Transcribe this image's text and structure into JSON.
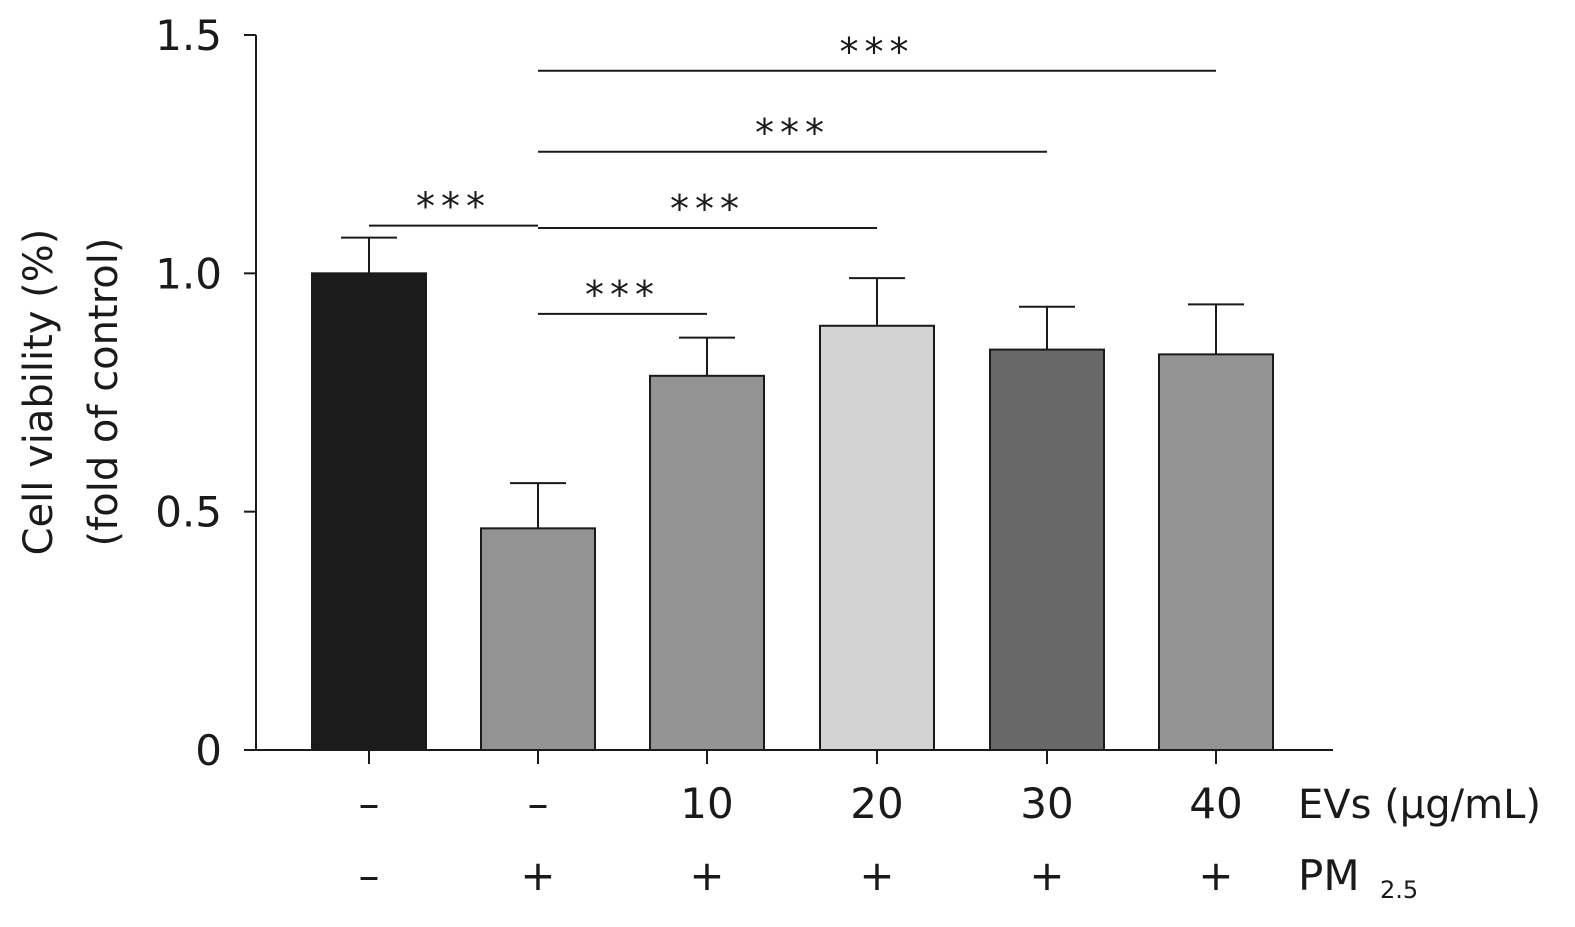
{
  "chart_data": {
    "type": "bar",
    "ylabel_line1": "Cell viability (%)",
    "ylabel_line2": "(fold of control)",
    "ylim": [
      0,
      1.5
    ],
    "yticks": [
      {
        "value": 0,
        "label": "0"
      },
      {
        "value": 0.5,
        "label": "0.5"
      },
      {
        "value": 1.0,
        "label": "1.0"
      },
      {
        "value": 1.5,
        "label": "1.5"
      }
    ],
    "bars": [
      {
        "ev": "–",
        "pm": "–",
        "value": 1.0,
        "error": 0.075,
        "color": "#1b1b1b"
      },
      {
        "ev": "–",
        "pm": "+",
        "value": 0.465,
        "error": 0.095,
        "color": "#939393"
      },
      {
        "ev": "10",
        "pm": "+",
        "value": 0.785,
        "error": 0.08,
        "color": "#939393"
      },
      {
        "ev": "20",
        "pm": "+",
        "value": 0.89,
        "error": 0.1,
        "color": "#d3d3d3"
      },
      {
        "ev": "30",
        "pm": "+",
        "value": 0.84,
        "error": 0.09,
        "color": "#686868"
      },
      {
        "ev": "40",
        "pm": "+",
        "value": 0.83,
        "error": 0.105,
        "color": "#939393"
      }
    ],
    "row_labels": {
      "ev": "EVs (μg/mL)",
      "pm_main": "PM",
      "pm_sub": "2.5"
    },
    "significance": [
      {
        "from": 0,
        "to": 1,
        "y": 1.1,
        "label": "***"
      },
      {
        "from": 1,
        "to": 2,
        "y": 0.915,
        "label": "***"
      },
      {
        "from": 1,
        "to": 3,
        "y": 1.095,
        "label": "***"
      },
      {
        "from": 1,
        "to": 4,
        "y": 1.255,
        "label": "***"
      },
      {
        "from": 1,
        "to": 5,
        "y": 1.425,
        "label": "***"
      }
    ]
  }
}
